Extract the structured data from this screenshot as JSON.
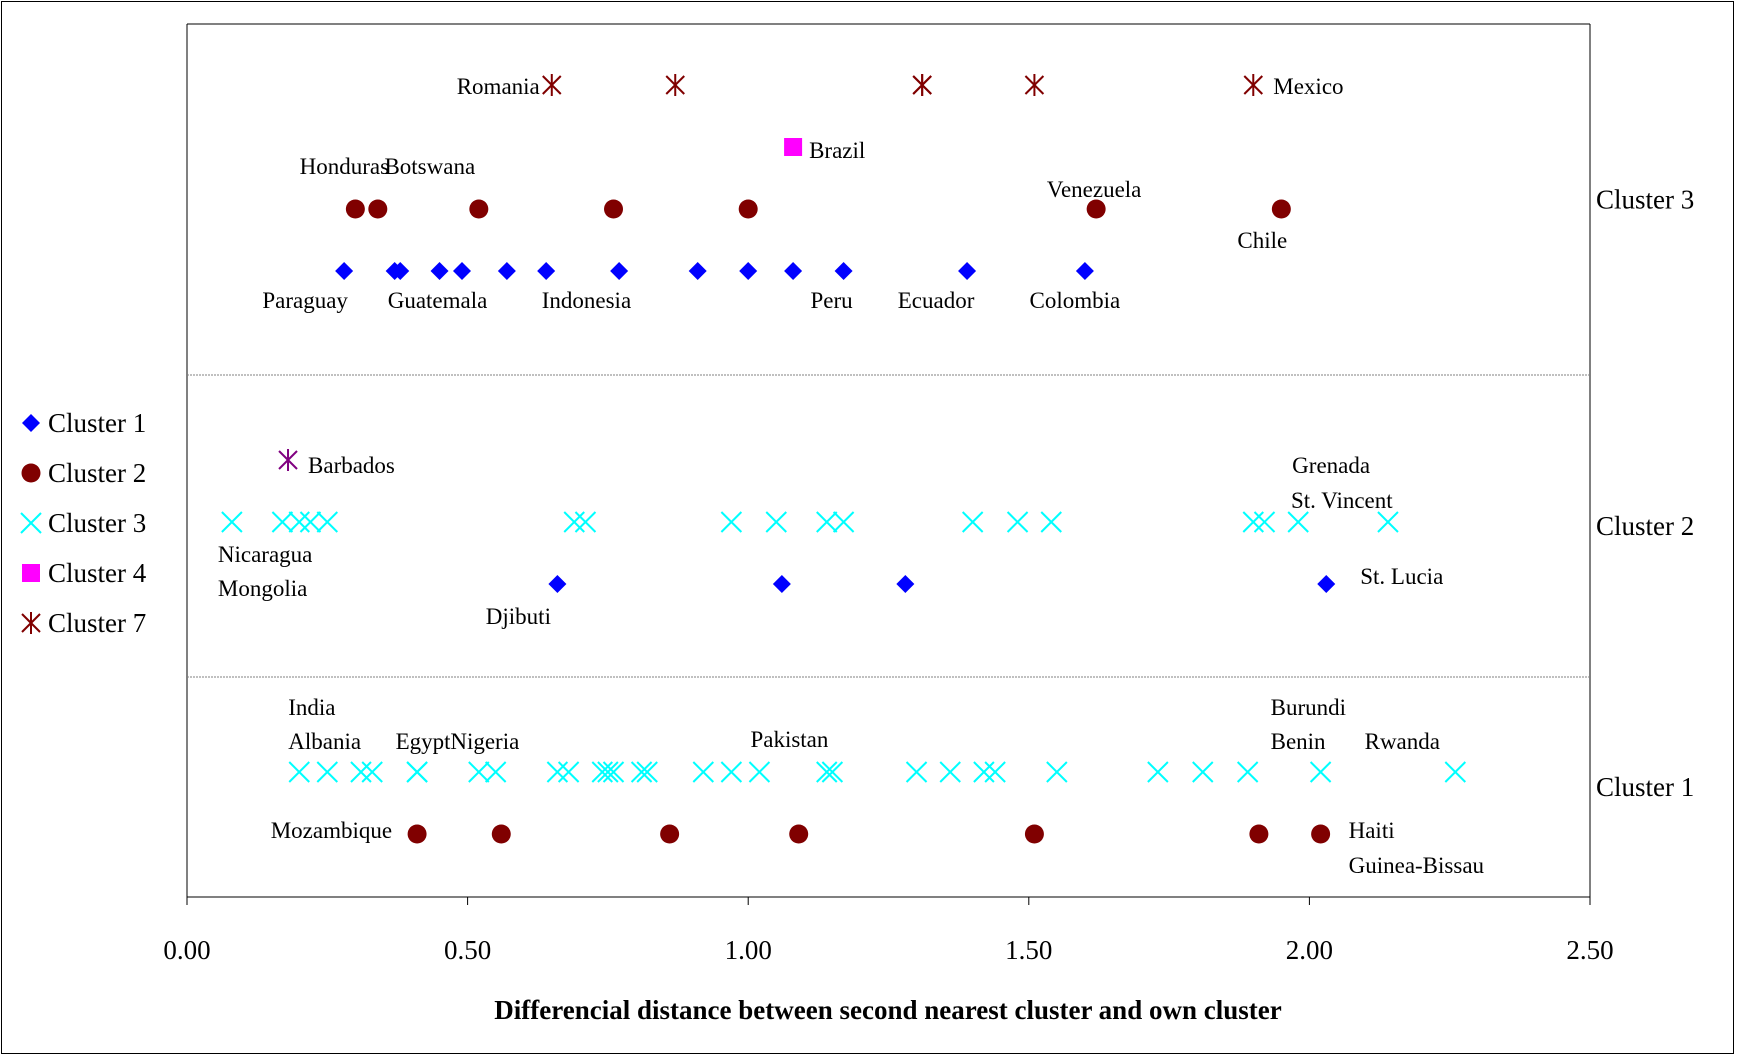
{
  "chart_data": {
    "type": "scatter",
    "xlabel": "Differencial distance between second nearest cluster and own cluster",
    "xlim": [
      0,
      2.5
    ],
    "x_ticks": [
      "0.00",
      "0.50",
      "1.00",
      "1.50",
      "2.00",
      "2.50"
    ],
    "bands": [
      "Cluster 1",
      "Cluster 2",
      "Cluster 3"
    ],
    "grid": false,
    "legend": {
      "position": "left",
      "entries": [
        {
          "name": "Cluster 1",
          "marker": "diamond",
          "color": "#0000FF"
        },
        {
          "name": "Cluster 2",
          "marker": "circle",
          "color": "#800000"
        },
        {
          "name": "Cluster 3",
          "marker": "x",
          "color": "#00FFFF"
        },
        {
          "name": "Cluster 4",
          "marker": "square",
          "color": "#FF00FF"
        },
        {
          "name": "Cluster 7",
          "marker": "star",
          "color": "#800000"
        }
      ]
    },
    "series": [
      {
        "name": "Cluster 1",
        "band": "Cluster 3",
        "color": "#0000FF",
        "marker": "diamond",
        "x": [
          0.28,
          0.37,
          0.38,
          0.45,
          0.49,
          0.57,
          0.64,
          0.77,
          0.91,
          1.0,
          1.08,
          1.17,
          1.39,
          1.6
        ]
      },
      {
        "name": "Cluster 1",
        "band": "Cluster 2",
        "color": "#0000FF",
        "marker": "diamond",
        "x": [
          0.66,
          1.06,
          1.28,
          2.03
        ]
      },
      {
        "name": "Cluster 2",
        "band": "Cluster 3",
        "color": "#800000",
        "marker": "circle",
        "x": [
          0.3,
          0.34,
          0.52,
          0.76,
          1.0,
          1.62,
          1.95
        ]
      },
      {
        "name": "Cluster 2",
        "band": "Cluster 1",
        "color": "#800000",
        "marker": "circle",
        "x": [
          0.41,
          0.56,
          0.86,
          1.09,
          1.51,
          1.91,
          2.02
        ]
      },
      {
        "name": "Cluster 3",
        "band": "Cluster 2",
        "color": "#00FFFF",
        "marker": "x",
        "x": [
          0.08,
          0.17,
          0.2,
          0.22,
          0.25,
          0.69,
          0.71,
          0.97,
          1.05,
          1.14,
          1.17,
          1.4,
          1.48,
          1.54,
          1.9,
          1.92,
          1.98,
          2.14
        ]
      },
      {
        "name": "Cluster 3",
        "band": "Cluster 1",
        "color": "#00FFFF",
        "marker": "x",
        "x": [
          0.2,
          0.25,
          0.31,
          0.33,
          0.41,
          0.41,
          0.52,
          0.55,
          0.66,
          0.68,
          0.74,
          0.75,
          0.76,
          0.81,
          0.82,
          0.92,
          0.97,
          1.02,
          1.14,
          1.15,
          1.3,
          1.36,
          1.42,
          1.44,
          1.55,
          1.73,
          1.81,
          1.89,
          2.02,
          2.26
        ]
      },
      {
        "name": "Cluster 4",
        "band": "Cluster 3",
        "color": "#FF00FF",
        "marker": "square",
        "x": [
          1.08
        ]
      },
      {
        "name": "Cluster 7",
        "band": "Cluster 3",
        "color": "#800000",
        "marker": "star",
        "x": [
          0.65,
          0.87,
          1.31,
          1.31,
          1.51,
          1.9
        ]
      },
      {
        "name": "Cluster 7",
        "band": "Cluster 2",
        "color": "#800080",
        "marker": "star",
        "x": [
          0.18
        ]
      }
    ],
    "annotations": [
      {
        "text": "Romania",
        "band": "Cluster 3",
        "x": 0.65
      },
      {
        "text": "Mexico",
        "band": "Cluster 3",
        "x": 1.9
      },
      {
        "text": "Brazil",
        "band": "Cluster 3",
        "x": 1.08
      },
      {
        "text": "Honduras",
        "band": "Cluster 3",
        "x": 0.3
      },
      {
        "text": "Botswana",
        "band": "Cluster 3",
        "x": 0.34
      },
      {
        "text": "Venezuela",
        "band": "Cluster 3",
        "x": 1.62
      },
      {
        "text": "Chile",
        "band": "Cluster 3",
        "x": 1.95
      },
      {
        "text": "Paraguay",
        "band": "Cluster 3",
        "x": 0.28
      },
      {
        "text": "Guatemala",
        "band": "Cluster 3",
        "x": 0.45
      },
      {
        "text": "Indonesia",
        "band": "Cluster 3",
        "x": 0.71
      },
      {
        "text": "Peru",
        "band": "Cluster 3",
        "x": 1.17
      },
      {
        "text": "Ecuador",
        "band": "Cluster 3",
        "x": 1.39
      },
      {
        "text": "Colombia",
        "band": "Cluster 3",
        "x": 1.6
      },
      {
        "text": "Barbados",
        "band": "Cluster 2",
        "x": 0.18
      },
      {
        "text": "Grenada",
        "band": "Cluster 2",
        "x": 1.98
      },
      {
        "text": "St. Vincent",
        "band": "Cluster 2",
        "x": 2.14
      },
      {
        "text": "Nicaragua",
        "band": "Cluster 2",
        "x": 0.08
      },
      {
        "text": "Mongolia",
        "band": "Cluster 2",
        "x": 0.08
      },
      {
        "text": "Djibuti",
        "band": "Cluster 2",
        "x": 0.66
      },
      {
        "text": "St. Lucia",
        "band": "Cluster 2",
        "x": 2.03
      },
      {
        "text": "India",
        "band": "Cluster 1",
        "x": 0.2
      },
      {
        "text": "Albania",
        "band": "Cluster 1",
        "x": 0.2
      },
      {
        "text": "Egypt",
        "band": "Cluster 1",
        "x": 0.41
      },
      {
        "text": "Nigeria",
        "band": "Cluster 1",
        "x": 0.52
      },
      {
        "text": "Pakistan",
        "band": "Cluster 1",
        "x": 1.02
      },
      {
        "text": "Burundi",
        "band": "Cluster 1",
        "x": 2.02
      },
      {
        "text": "Benin",
        "band": "Cluster 1",
        "x": 2.02
      },
      {
        "text": "Rwanda",
        "band": "Cluster 1",
        "x": 2.26
      },
      {
        "text": "Mozambique",
        "band": "Cluster 1",
        "x": 0.41
      },
      {
        "text": "Haiti",
        "band": "Cluster 1",
        "x": 2.02
      },
      {
        "text": "Guinea-Bissau",
        "band": "Cluster 1",
        "x": 2.02
      }
    ]
  }
}
